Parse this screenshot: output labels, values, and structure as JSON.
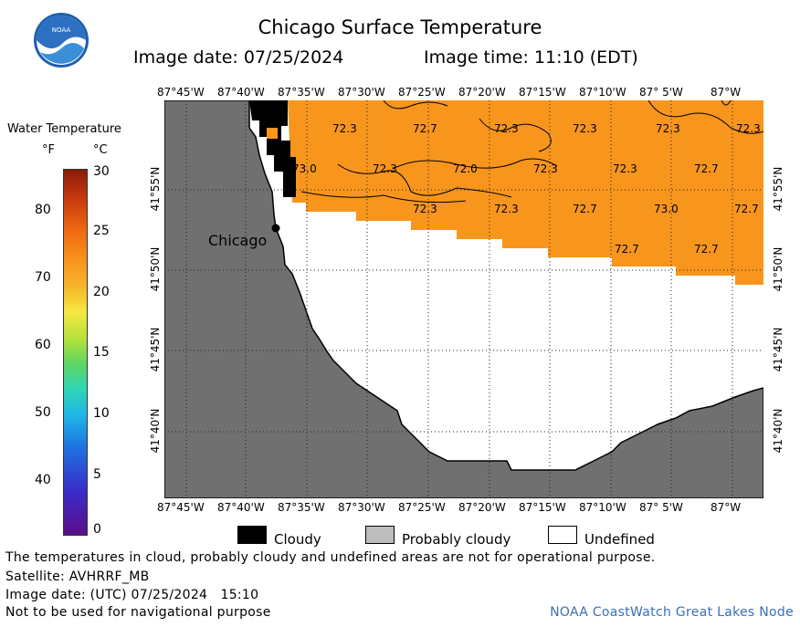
{
  "header": {
    "title": "Chicago Surface Temperature",
    "image_date": "Image date: 07/25/2024",
    "image_time": "Image time: 11:10 (EDT)",
    "logo_text": "NOAA"
  },
  "colorbar": {
    "title": "Water Temperature",
    "f_unit": "°F",
    "c_unit": "°C",
    "f_ticks": [
      "80",
      "70",
      "60",
      "50",
      "40"
    ],
    "c_ticks": [
      "30",
      "25",
      "20",
      "15",
      "10",
      "5",
      "0"
    ]
  },
  "map": {
    "lon_labels": [
      "87°45'W",
      "87°40'W",
      "87°35'W",
      "87°30'W",
      "87°25'W",
      "87°20'W",
      "87°15'W",
      "87°10'W",
      "87° 5'W",
      "87°W"
    ],
    "lat_labels": [
      "41°55'N",
      "41°50'N",
      "41°45'N",
      "41°40'N"
    ],
    "city_label": "Chicago",
    "temperatures": [
      "72.3",
      "72.7",
      "72.3",
      "72.3",
      "72.3",
      "72.3",
      "73.0",
      "72.3",
      "72.0",
      "72.3",
      "72.3",
      "72.7",
      "72.3",
      "72.3",
      "72.7",
      "73.0",
      "72.7",
      "72.7",
      "72.7"
    ],
    "colors": {
      "land": "#707070",
      "water_warm": "#f7951d",
      "undefined": "#ffffff",
      "cloudy": "#000000",
      "probably_cloudy": "#bdbdbd"
    }
  },
  "legend": {
    "cloudy": "Cloudy",
    "probably_cloudy": "Probably cloudy",
    "undefined": "Undefined"
  },
  "footer": {
    "note": "The temperatures in cloud, probably cloudy and undefined areas are not for operational purpose.",
    "satellite": "Satellite: AVHRRF_MB",
    "image_date_utc": "Image date: (UTC) 07/25/2024   15:10",
    "navigation": "Not to be used for navigational purpose",
    "credit": "NOAA CoastWatch Great Lakes Node"
  }
}
